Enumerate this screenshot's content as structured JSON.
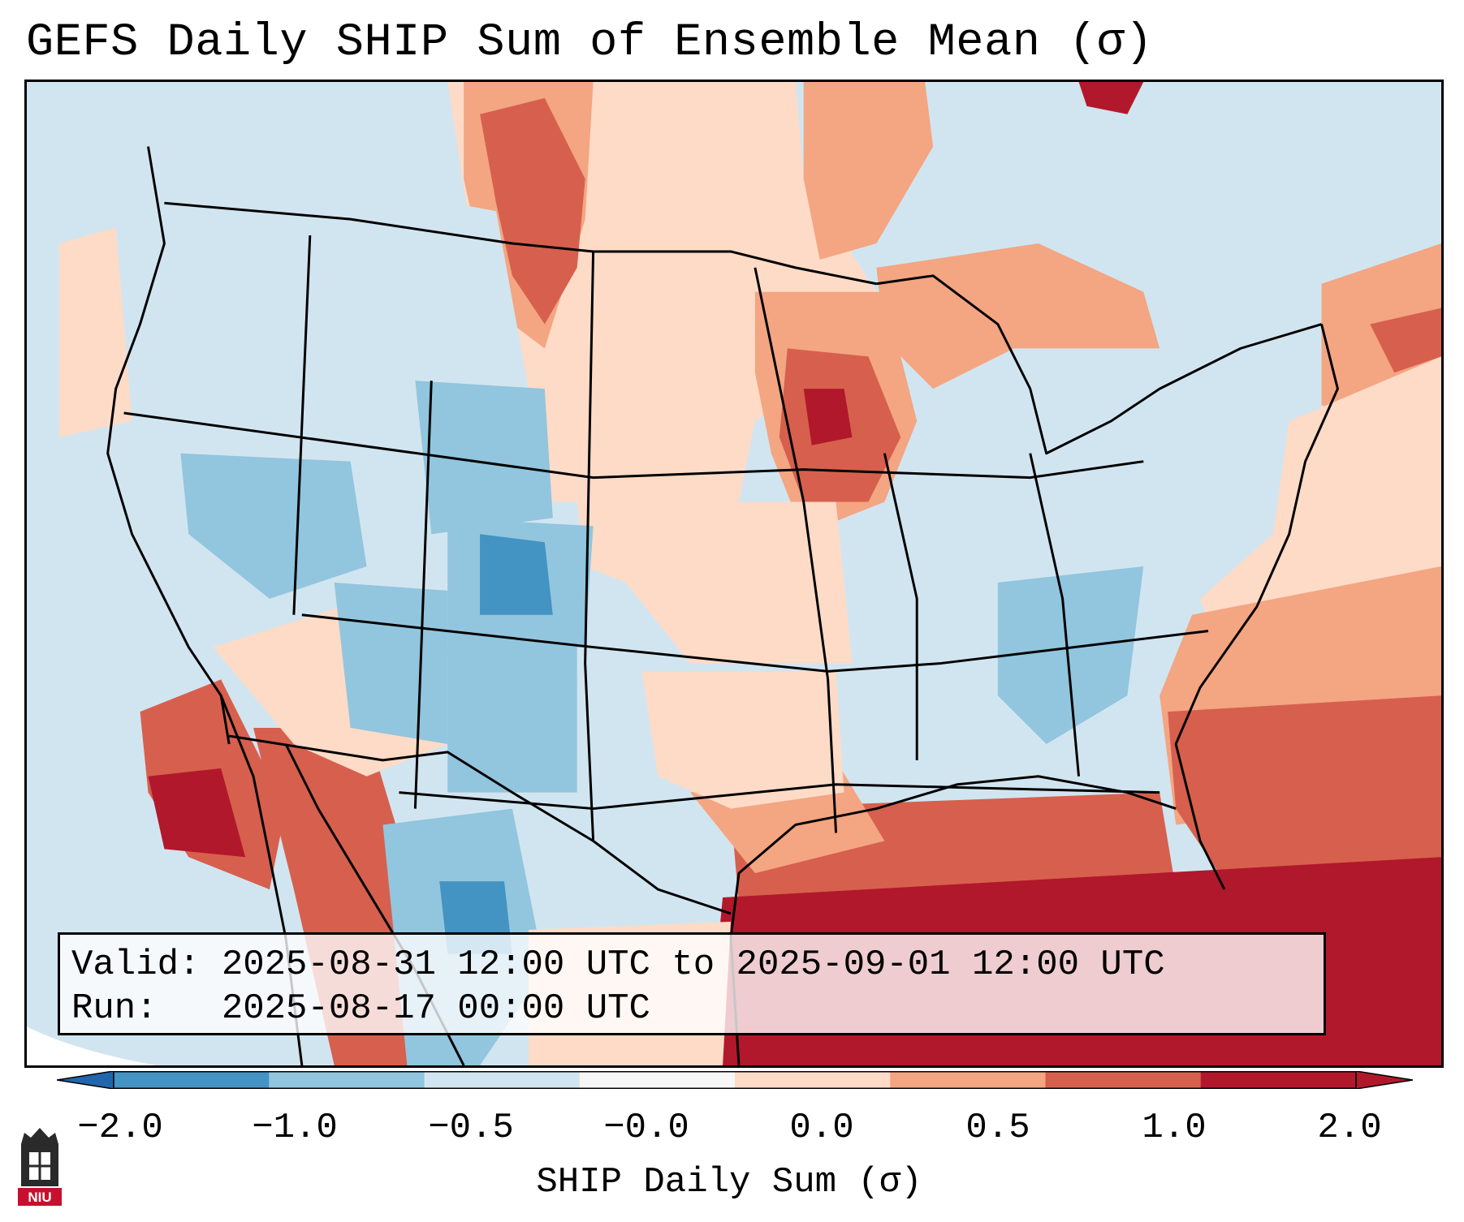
{
  "title": "GEFS Daily SHIP Sum of Ensemble Mean (σ)",
  "info": {
    "valid_label": "Valid:",
    "valid_value": "2025-08-31 12:00 UTC to 2025-09-01 12:00 UTC",
    "run_label": "Run:",
    "run_value": "2025-08-17 00:00 UTC"
  },
  "colorbar": {
    "label": "SHIP Daily Sum (σ)",
    "ticks": [
      "−2.0",
      "−1.0",
      "−0.5",
      "−0.0",
      "0.0",
      "0.5",
      "1.0",
      "2.0"
    ],
    "colors": [
      "#4393c3",
      "#92c5de",
      "#d1e5f0",
      "#f7f7f7",
      "#fddbc7",
      "#f4a582",
      "#d6604d",
      "#b2182b"
    ],
    "extend_low_color": "#2166ac",
    "extend_high_color": "#b2182b"
  },
  "map": {
    "region": "Contiguous United States",
    "background_color": "#d1e5f0"
  },
  "logo": {
    "text": "NIU",
    "color": "#c8102e"
  }
}
